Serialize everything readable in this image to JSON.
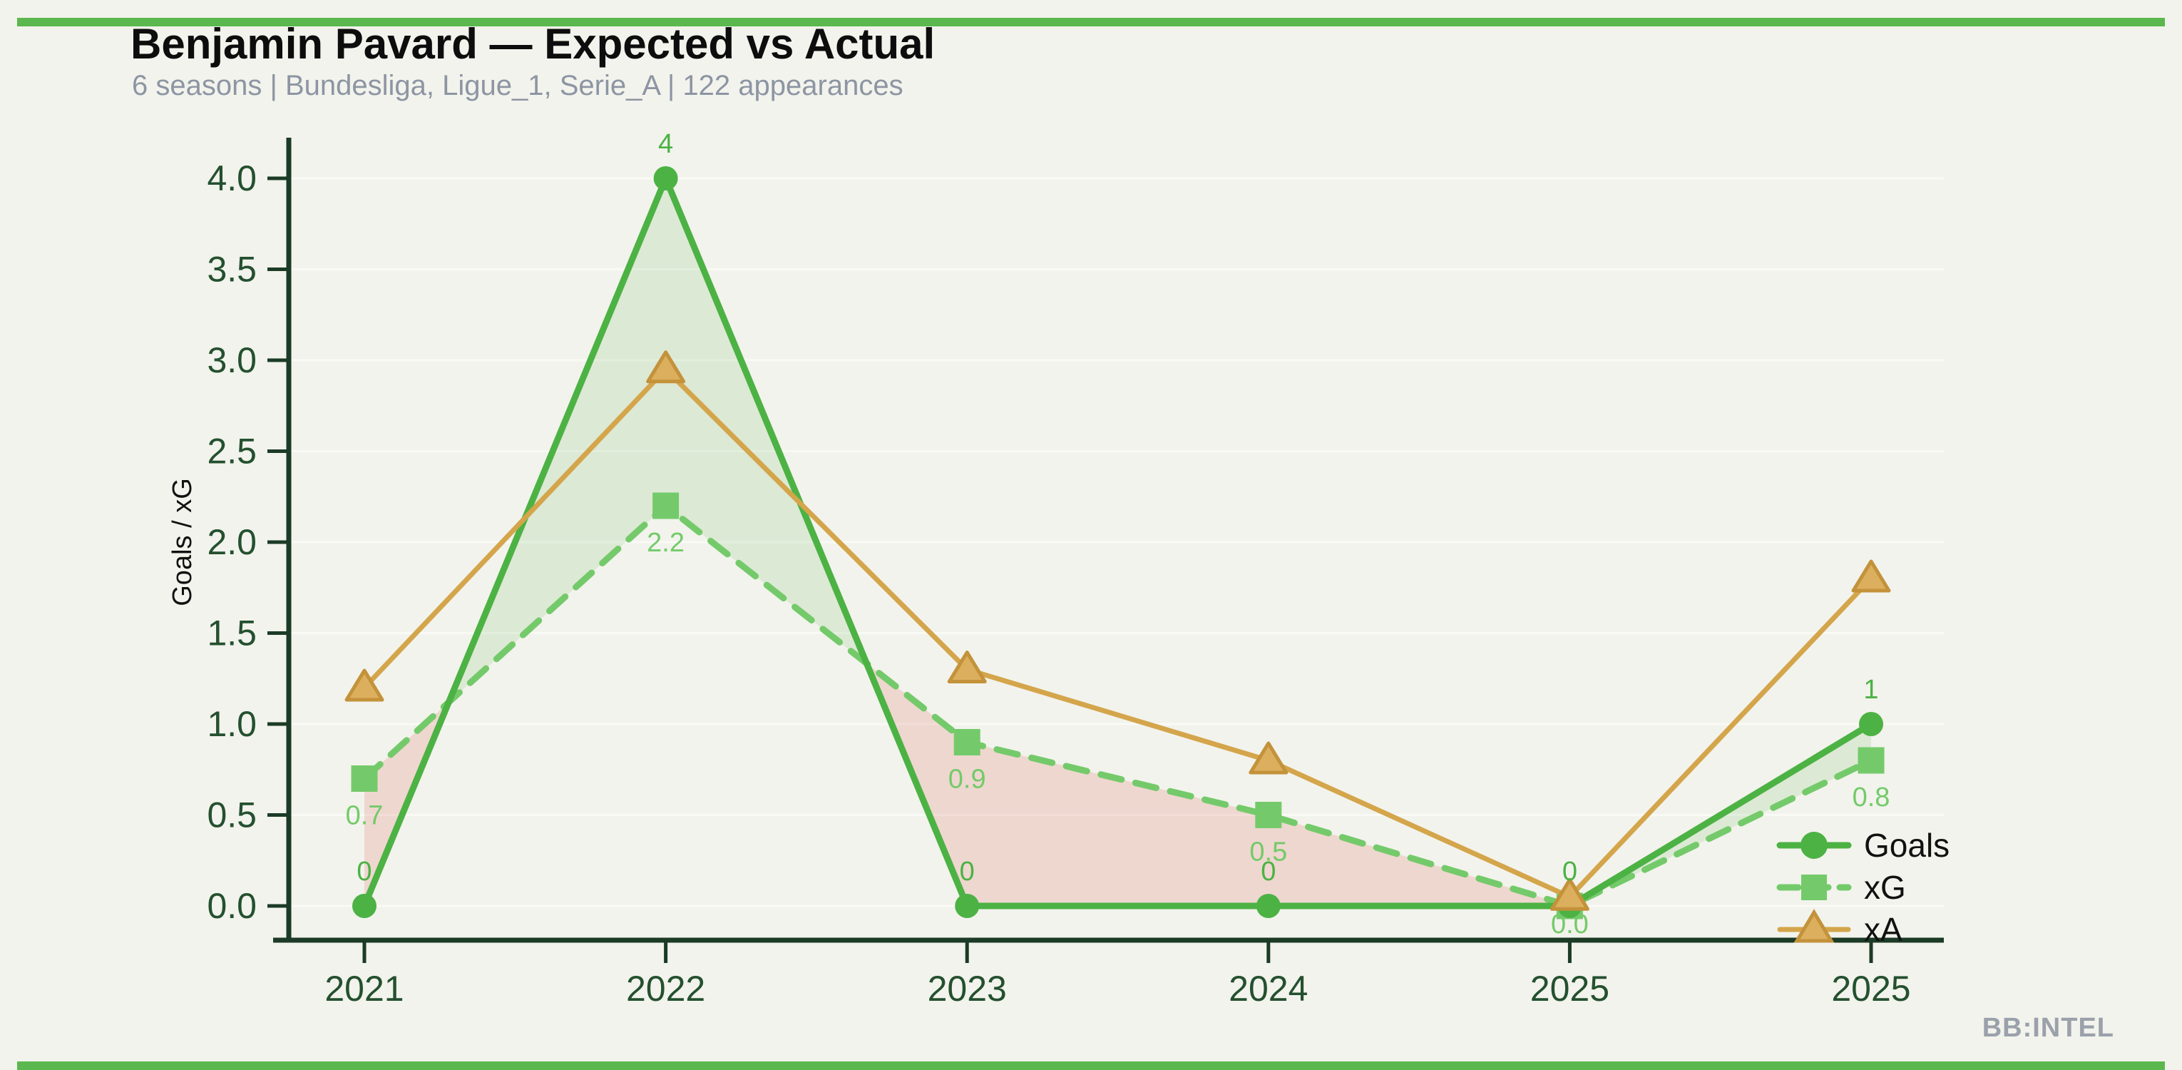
{
  "header": {
    "title": "Benjamin Pavard — Expected vs Actual",
    "subtitle": "6 seasons | Bundesliga, Ligue_1, Serie_A | 122 appearances"
  },
  "watermark": "BB:INTEL",
  "accent_bar_color": "#5bb84e",
  "chart_data": {
    "type": "line",
    "title": "Benjamin Pavard — Expected vs Actual",
    "subtitle": "6 seasons | Bundesliga, Ligue_1, Serie_A | 122 appearances",
    "xlabel": "",
    "ylabel": "Goals / xG",
    "categories": [
      "2021",
      "2022",
      "2023",
      "2024",
      "2025",
      "2025"
    ],
    "ylim": [
      0,
      4
    ],
    "ytick_labels": [
      "0.0",
      "0.5",
      "1.0",
      "1.5",
      "2.0",
      "2.5",
      "3.0",
      "3.5",
      "4.0"
    ],
    "grid": true,
    "legend_position": "lower right",
    "series": [
      {
        "name": "Goals",
        "marker": "circle",
        "line_style": "solid",
        "color": "#4cb244",
        "values": [
          0,
          4,
          0,
          0,
          0,
          1
        ],
        "point_labels": [
          "0",
          "4",
          "0",
          "0",
          "0",
          "1"
        ]
      },
      {
        "name": "xG",
        "marker": "square",
        "line_style": "dashed",
        "color": "#74ca6a",
        "values": [
          0.7,
          2.2,
          0.9,
          0.5,
          0.0,
          0.8
        ],
        "point_labels": [
          "0.7",
          "2.2",
          "0.9",
          "0.5",
          "0.0",
          "0.8"
        ]
      },
      {
        "name": "xA",
        "marker": "triangle",
        "line_style": "solid",
        "color": "#d4a54b",
        "marker_fill": "#dcaf5e",
        "marker_stroke": "#c3923a",
        "values": [
          1.2,
          2.95,
          1.3,
          0.8,
          0.05,
          1.8
        ],
        "point_labels": []
      }
    ],
    "fill_between": {
      "series_a": "Goals",
      "series_b": "xG",
      "above_color": "#5cb84f",
      "below_color": "#e0756b",
      "above_opacity": 0.15,
      "below_opacity": 0.22
    },
    "axis_color": "#1b3b26",
    "tick_label_color": "#24502f",
    "grid_color": "#ffffff",
    "legend_text_color": "#111111"
  }
}
